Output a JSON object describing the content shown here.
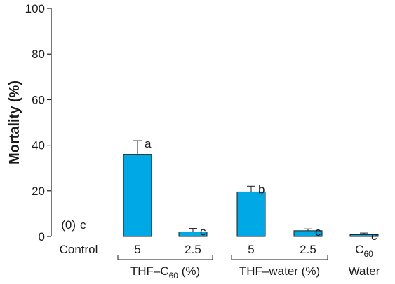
{
  "chart_data": {
    "type": "bar",
    "ylabel": "Mortality (%)",
    "ylim": [
      0,
      100
    ],
    "yticks": [
      "0",
      "20",
      "40",
      "60",
      "80",
      "100"
    ],
    "grid": false,
    "bar_color": "#00a9e6",
    "categories": [
      {
        "label": "Control",
        "value": 0,
        "error": 0,
        "sig": "c",
        "zero_note": "(0)"
      },
      {
        "label": "5",
        "value": 36,
        "error": 6,
        "sig": "a"
      },
      {
        "label": "2.5",
        "value": 2,
        "error": 1.5,
        "sig": "c"
      },
      {
        "label": "5",
        "value": 19.5,
        "error": 2.5,
        "sig": "b"
      },
      {
        "label": "2.5",
        "value": 2.5,
        "error": 0.8,
        "sig": "c"
      },
      {
        "label": "C",
        "label_sub": "60",
        "value": 0.8,
        "error": 0.7,
        "sig": "c"
      }
    ],
    "groups": [
      {
        "label": "THF–C",
        "label_sub": "60",
        "label_suffix": " (%)",
        "from": 1,
        "to": 2
      },
      {
        "label": "THF–water (%)",
        "from": 3,
        "to": 4
      },
      {
        "label": "Water",
        "from": 5,
        "to": 5,
        "bracket": false
      }
    ]
  }
}
